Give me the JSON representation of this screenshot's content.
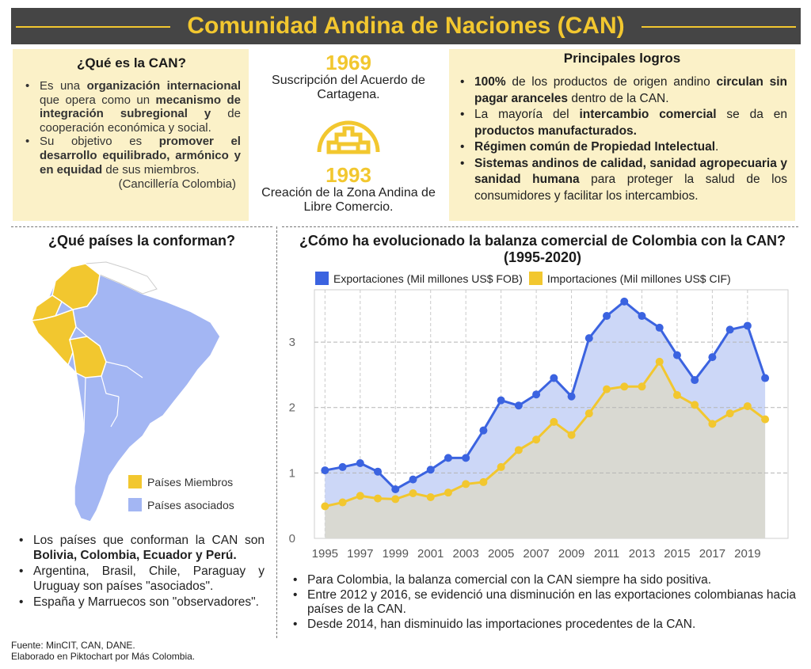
{
  "header": {
    "title": "Comunidad Andina de  Naciones (CAN)"
  },
  "what_is": {
    "title": "¿Qué es la CAN?",
    "b1": {
      "t1": "Es una ",
      "b1": "organización internacional",
      "t2": " que opera como un ",
      "b2": "mecanismo de integración subregional y",
      "t3": " de cooperación económica y social."
    },
    "b2": {
      "t1": "Su objetivo es ",
      "b1": "promover el desarrollo equilibrado, armónico y en equidad",
      "t2": " de sus miembros."
    },
    "source": "(Cancillería Colombia)"
  },
  "timeline": {
    "y1": "1969",
    "d1": "Suscripción del Acuerdo de Cartagena.",
    "y2": "1993",
    "d2": "Creación de la Zona Andina de Libre Comercio."
  },
  "achievements": {
    "title": "Principales logros",
    "b1": {
      "b1": "100%",
      "t1": " de los productos de origen andino ",
      "b2": "circulan sin pagar aranceles",
      "t2": " dentro de la CAN."
    },
    "b2": {
      "t1": "La mayoría del ",
      "b1": "intercambio comercial",
      "t2": " se da en  ",
      "b2": "productos manufacturados."
    },
    "b3": {
      "b1": "Régimen común de Propiedad Intelectual",
      "t1": "."
    },
    "b4": {
      "b1": "Sistemas andinos de calidad, sanidad agropecuaria y sanidad humana",
      "t1": " para proteger la salud de los consumidores y facilitar los intercambios."
    }
  },
  "countries": {
    "title": "¿Qué países la conforman?",
    "legend_members": "Países Miembros",
    "legend_associates": "Países asociados",
    "b1": {
      "t1": "Los países que conforman la CAN son ",
      "b1": "Bolivia,  Colombia, Ecuador y Perú."
    },
    "b2": "Argentina, Brasil, Chile, Paraguay y Uruguay son países \"asociados\".",
    "b3": "España y Marruecos son \"observadores\"."
  },
  "footer": {
    "line1": "Fuente: MinCIT, CAN, DANE.",
    "line2": "Elaborado en Piktochart por Más Colombia."
  },
  "right_bullets": {
    "b1": "Para Colombia, la balanza comercial con la CAN siempre ha sido positiva.",
    "b2": "Entre 2012 y 2016, se evidenció una disminución en las exportaciones colombianas hacia países de la CAN.",
    "b3": "Desde 2014, han disminuido las importaciones procedentes de la CAN."
  },
  "colors": {
    "yellow": "#f2c72f",
    "blue": "#3b63e0",
    "map_blue": "#a3b6f3",
    "panel": "#fbf1c8",
    "header_bg": "#454545"
  },
  "chart_data": {
    "type": "area",
    "title": "¿Cómo ha evolucionado la balanza comercial de Colombia con la CAN?",
    "subtitle": "(1995-2020)",
    "x": [
      1995,
      1996,
      1997,
      1998,
      1999,
      2000,
      2001,
      2002,
      2003,
      2004,
      2005,
      2006,
      2007,
      2008,
      2009,
      2010,
      2011,
      2012,
      2013,
      2014,
      2015,
      2016,
      2017,
      2018,
      2019,
      2020
    ],
    "x_tick_labels": [
      "1995",
      "1997",
      "1999",
      "2001",
      "2003",
      "2005",
      "2007",
      "2009",
      "2011",
      "2013",
      "2015",
      "2017",
      "2019"
    ],
    "y_tick_labels": [
      "0",
      "1",
      "2",
      "3"
    ],
    "ylim": [
      0,
      3.8
    ],
    "grid": true,
    "legend_position": "top",
    "series": [
      {
        "name": "Exportaciones (Mil millones US$ FOB)",
        "color": "#3b63e0",
        "values": [
          1.04,
          1.09,
          1.15,
          1.02,
          0.75,
          0.9,
          1.05,
          1.23,
          1.23,
          1.65,
          2.11,
          2.03,
          2.2,
          2.45,
          2.17,
          3.06,
          3.4,
          3.62,
          3.4,
          3.22,
          2.8,
          2.42,
          2.77,
          3.19,
          3.25,
          2.45
        ]
      },
      {
        "name": "Importaciones (Mil millones US$ CIF)",
        "color": "#f2c72f",
        "values": [
          0.49,
          0.55,
          0.65,
          0.61,
          0.6,
          0.69,
          0.63,
          0.7,
          0.83,
          0.86,
          1.09,
          1.35,
          1.51,
          1.78,
          1.58,
          1.91,
          2.28,
          2.32,
          2.32,
          2.7,
          2.19,
          2.04,
          1.75,
          1.91,
          2.02,
          1.82
        ]
      }
    ]
  }
}
